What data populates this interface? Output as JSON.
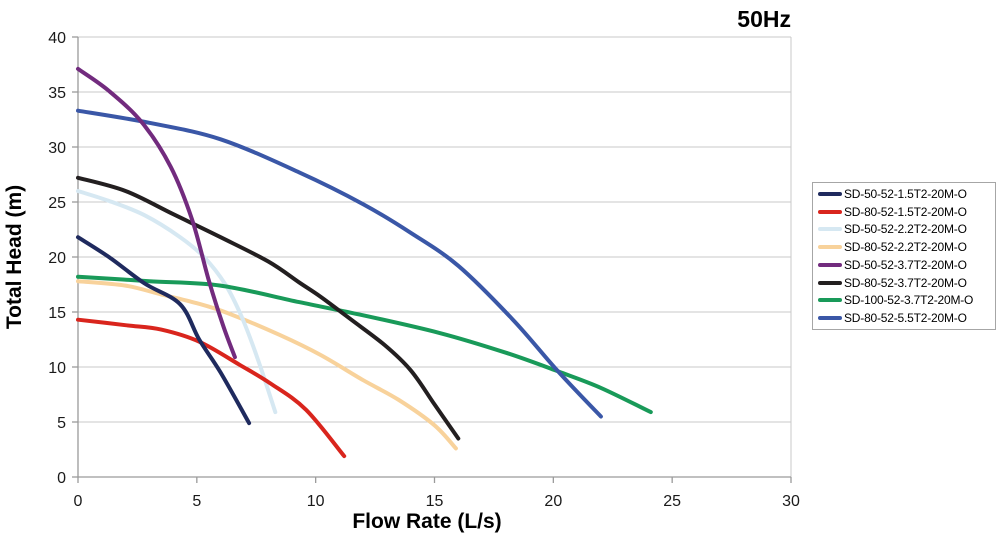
{
  "title": "50Hz",
  "colors": {
    "axis": "#9a9a9a",
    "grid": "#c9c9c9",
    "tick_text": "#1a1a1a",
    "title_text": "#000000",
    "legend_border": "#a6a6a6",
    "background": "#ffffff"
  },
  "chart_data": {
    "type": "line",
    "title": "50Hz",
    "xlabel": "Flow Rate (L/s)",
    "ylabel": "Total Head (m)",
    "xlim": [
      0,
      30
    ],
    "ylim": [
      0,
      40
    ],
    "x_ticks": [
      0,
      5,
      10,
      15,
      20,
      25,
      30
    ],
    "y_ticks": [
      0,
      5,
      10,
      15,
      20,
      25,
      30,
      35,
      40
    ],
    "grid": "horizontal-only",
    "legend_position": "right",
    "series": [
      {
        "name": "SD-50-52-1.5T2-20M-O",
        "color": "#1F2A5E",
        "points": [
          [
            0,
            21.8
          ],
          [
            1.3,
            20.0
          ],
          [
            2.8,
            17.6
          ],
          [
            4.3,
            15.7
          ],
          [
            5.1,
            12.5
          ],
          [
            6.0,
            9.5
          ],
          [
            7.2,
            4.9
          ]
        ]
      },
      {
        "name": "SD-80-52-1.5T2-20M-O",
        "color": "#D9251D",
        "points": [
          [
            0,
            14.3
          ],
          [
            2,
            13.8
          ],
          [
            3.5,
            13.4
          ],
          [
            5.1,
            12.3
          ],
          [
            6.8,
            10.2
          ],
          [
            8.1,
            8.5
          ],
          [
            9.6,
            6.1
          ],
          [
            11.2,
            1.9
          ]
        ]
      },
      {
        "name": "SD-50-52-2.2T2-20M-O",
        "color": "#D6E8F2",
        "points": [
          [
            0,
            26.0
          ],
          [
            1.3,
            25.1
          ],
          [
            2.8,
            23.8
          ],
          [
            4.3,
            21.8
          ],
          [
            5.3,
            20.0
          ],
          [
            6.2,
            17.5
          ],
          [
            6.9,
            14.5
          ],
          [
            7.6,
            10.5
          ],
          [
            8.3,
            5.9
          ]
        ]
      },
      {
        "name": "SD-80-52-2.2T2-20M-O",
        "color": "#F8D29B",
        "points": [
          [
            0,
            17.8
          ],
          [
            2,
            17.4
          ],
          [
            3.5,
            16.6
          ],
          [
            5,
            15.8
          ],
          [
            6.3,
            14.9
          ],
          [
            8.5,
            12.9
          ],
          [
            10.2,
            11.1
          ],
          [
            12,
            8.8
          ],
          [
            13.5,
            7.0
          ],
          [
            15,
            4.7
          ],
          [
            15.9,
            2.6
          ]
        ]
      },
      {
        "name": "SD-50-52-3.7T2-20M-O",
        "color": "#722B7E",
        "points": [
          [
            0,
            37.1
          ],
          [
            1.3,
            35.1
          ],
          [
            2.7,
            32.2
          ],
          [
            3.9,
            28.2
          ],
          [
            4.8,
            23.4
          ],
          [
            5.5,
            17.9
          ],
          [
            6.1,
            13.8
          ],
          [
            6.6,
            10.9
          ]
        ]
      },
      {
        "name": "SD-80-52-3.7T2-20M-O",
        "color": "#231F20",
        "points": [
          [
            0,
            27.2
          ],
          [
            2,
            26.0
          ],
          [
            4,
            23.9
          ],
          [
            6,
            21.8
          ],
          [
            8,
            19.6
          ],
          [
            9.3,
            17.7
          ],
          [
            10.2,
            16.4
          ],
          [
            11.5,
            14.3
          ],
          [
            12.9,
            12.0
          ],
          [
            14,
            9.7
          ],
          [
            15,
            6.6
          ],
          [
            16,
            3.5
          ]
        ]
      },
      {
        "name": "SD-100-52-3.7T2-20M-O",
        "color": "#199A59",
        "points": [
          [
            0,
            18.2
          ],
          [
            3,
            17.8
          ],
          [
            6,
            17.4
          ],
          [
            9.3,
            15.9
          ],
          [
            12,
            14.7
          ],
          [
            15.2,
            13.1
          ],
          [
            18,
            11.3
          ],
          [
            20.2,
            9.6
          ],
          [
            22,
            8.1
          ],
          [
            24.1,
            5.9
          ]
        ]
      },
      {
        "name": "SD-80-52-5.5T2-20M-O",
        "color": "#3A57A7",
        "points": [
          [
            0,
            33.3
          ],
          [
            3,
            32.2
          ],
          [
            6,
            30.7
          ],
          [
            9.3,
            27.7
          ],
          [
            12,
            24.8
          ],
          [
            14,
            22.2
          ],
          [
            16,
            19.2
          ],
          [
            18.3,
            14.3
          ],
          [
            20.2,
            9.6
          ],
          [
            22,
            5.5
          ]
        ]
      }
    ]
  }
}
